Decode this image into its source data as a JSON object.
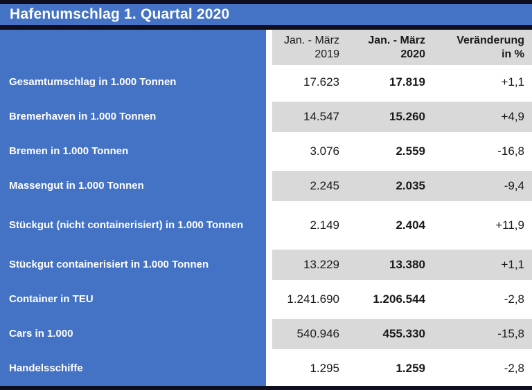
{
  "title_bar": {
    "title": "Hafenumschlag 1. Quartal 2020"
  },
  "colors": {
    "accent_blue": "#4472c4",
    "stripe_gray": "#d9d9d9",
    "border_dark": "#0e0e1e",
    "title_text": "#ffffff",
    "value_text": "#1a1a1a"
  },
  "chart_data": {
    "type": "table",
    "title": "Hafenumschlag 1. Quartal 2020",
    "columns": [
      {
        "line1": "Jan. - März",
        "line2": "2019"
      },
      {
        "line1": "Jan. - März",
        "line2": "2020"
      },
      {
        "line1": "Veränderung",
        "line2": "in %"
      }
    ],
    "rows": [
      {
        "label": "Gesamtumschlag in 1.000 Tonnen",
        "v2019": "17.623",
        "v2020": "17.819",
        "change": "+1,1"
      },
      {
        "label": "Bremerhaven in 1.000 Tonnen",
        "v2019": "14.547",
        "v2020": "15.260",
        "change": "+4,9"
      },
      {
        "label": "Bremen in 1.000 Tonnen",
        "v2019": "3.076",
        "v2020": "2.559",
        "change": "-16,8"
      },
      {
        "label": "Massengut in 1.000 Tonnen",
        "v2019": "2.245",
        "v2020": "2.035",
        "change": "-9,4"
      },
      {
        "label": "Stückgut (nicht containerisiert) in 1.000 Tonnen",
        "v2019": "2.149",
        "v2020": "2.404",
        "change": "+11,9"
      },
      {
        "label": "Stückgut containerisiert in 1.000 Tonnen",
        "v2019": "13.229",
        "v2020": "13.380",
        "change": "+1,1"
      },
      {
        "label": "Container in TEU",
        "v2019": "1.241.690",
        "v2020": "1.206.544",
        "change": "-2,8"
      },
      {
        "label": "Cars in 1.000",
        "v2019": "540.946",
        "v2020": "455.330",
        "change": "-15,8"
      },
      {
        "label": "Handelsschiffe",
        "v2019": "1.295",
        "v2020": "1.259",
        "change": "-2,8"
      }
    ]
  }
}
